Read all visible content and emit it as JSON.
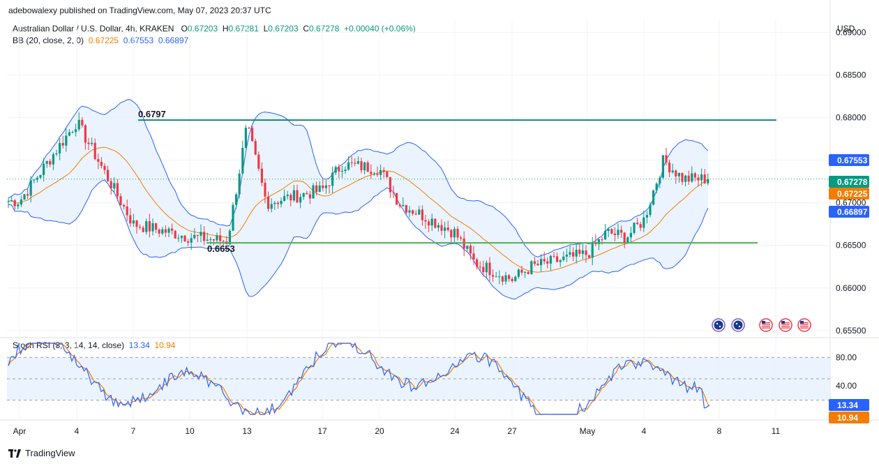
{
  "header": {
    "publisher": "adebowalexy published on TradingView.com, May 07, 2023 20:37 UTC",
    "symbol": "Australian Dollar / U.S. Dollar, 4h, KRAKEN",
    "open_label": "O",
    "open": "0.67203",
    "high_label": "H",
    "high": "0.67281",
    "low_label": "L",
    "low": "0.67203",
    "close_label": "C",
    "close": "0.67278",
    "change": "+0.00040 (+0.06%)",
    "bb_label": "BB (20, close, 2, 0)",
    "bb_basis": "0.67225",
    "bb_upper": "0.67553",
    "bb_lower": "0.66897",
    "rsi_label": "Stoch RSI (3, 3, 14, 14, close)",
    "rsi_k": "13.34",
    "rsi_d": "10.94",
    "currency": "USD",
    "brand": "TradingView"
  },
  "colors": {
    "up": "#089981",
    "down": "#f23645",
    "bb_band": "#2962ff",
    "bb_basis": "#f57c00",
    "bb_fill": "#e3f0fd",
    "level_top": "#14866d",
    "level_bottom": "#4caf50",
    "rsi_k": "#2962ff",
    "rsi_d": "#f57c00"
  },
  "chart_data": [
    {
      "type": "candlestick",
      "title": "Australian Dollar / U.S. Dollar, 4h, KRAKEN",
      "ylim": [
        0.6545,
        0.6915
      ],
      "y_ticks": [
        "0.69000",
        "0.68500",
        "0.68000",
        "0.67500",
        "0.67000",
        "0.66500",
        "0.66000",
        "0.65500"
      ],
      "x_ticks": [
        "Apr",
        "4",
        "7",
        "10",
        "13",
        "17",
        "20",
        "24",
        "27",
        "May",
        "4",
        "8",
        "11"
      ],
      "close_path": [
        [
          "Apr",
          0.6702
        ],
        [
          "4",
          0.6795
        ],
        [
          "7",
          0.6675
        ],
        [
          "10",
          0.666
        ],
        [
          "12",
          0.6655
        ],
        [
          "13",
          0.679
        ],
        [
          "14",
          0.67
        ],
        [
          "17",
          0.6715
        ],
        [
          "18",
          0.6745
        ],
        [
          "20",
          0.674
        ],
        [
          "21",
          0.67
        ],
        [
          "24",
          0.6665
        ],
        [
          "25",
          0.663
        ],
        [
          "27",
          0.661
        ],
        [
          "28",
          0.6625
        ],
        [
          "May",
          0.664
        ],
        [
          "2",
          0.6665
        ],
        [
          "3",
          0.666
        ],
        [
          "4",
          0.668
        ],
        [
          "5",
          0.675
        ],
        [
          "6",
          0.6728
        ]
      ],
      "price_labels": [
        {
          "text": "0.67553",
          "color": "#2962ff"
        },
        {
          "text": "0.67278",
          "color": "#089981"
        },
        {
          "text": "0.67225",
          "color": "#f57c00"
        },
        {
          "text": "0.66897",
          "color": "#2962ff"
        }
      ],
      "levels": [
        {
          "label": "0.6797",
          "value": 0.6797
        },
        {
          "label": "0.6653",
          "value": 0.6653
        }
      ],
      "series": [
        {
          "name": "BB upper"
        },
        {
          "name": "BB basis"
        },
        {
          "name": "BB lower"
        }
      ]
    },
    {
      "type": "line",
      "title": "Stoch RSI (3, 3, 14, 14, close)",
      "ylim": [
        0,
        100
      ],
      "y_ticks": [
        "80.00",
        "40.00"
      ],
      "band": [
        20,
        80
      ],
      "series": [
        {
          "name": "K",
          "value_label": "13.34"
        },
        {
          "name": "D",
          "value_label": "10.94"
        }
      ]
    }
  ],
  "event_icons": [
    "australia-flag-icon",
    "australia-flag-icon",
    "us-flag-icon",
    "us-flag-icon",
    "us-flag-icon"
  ]
}
